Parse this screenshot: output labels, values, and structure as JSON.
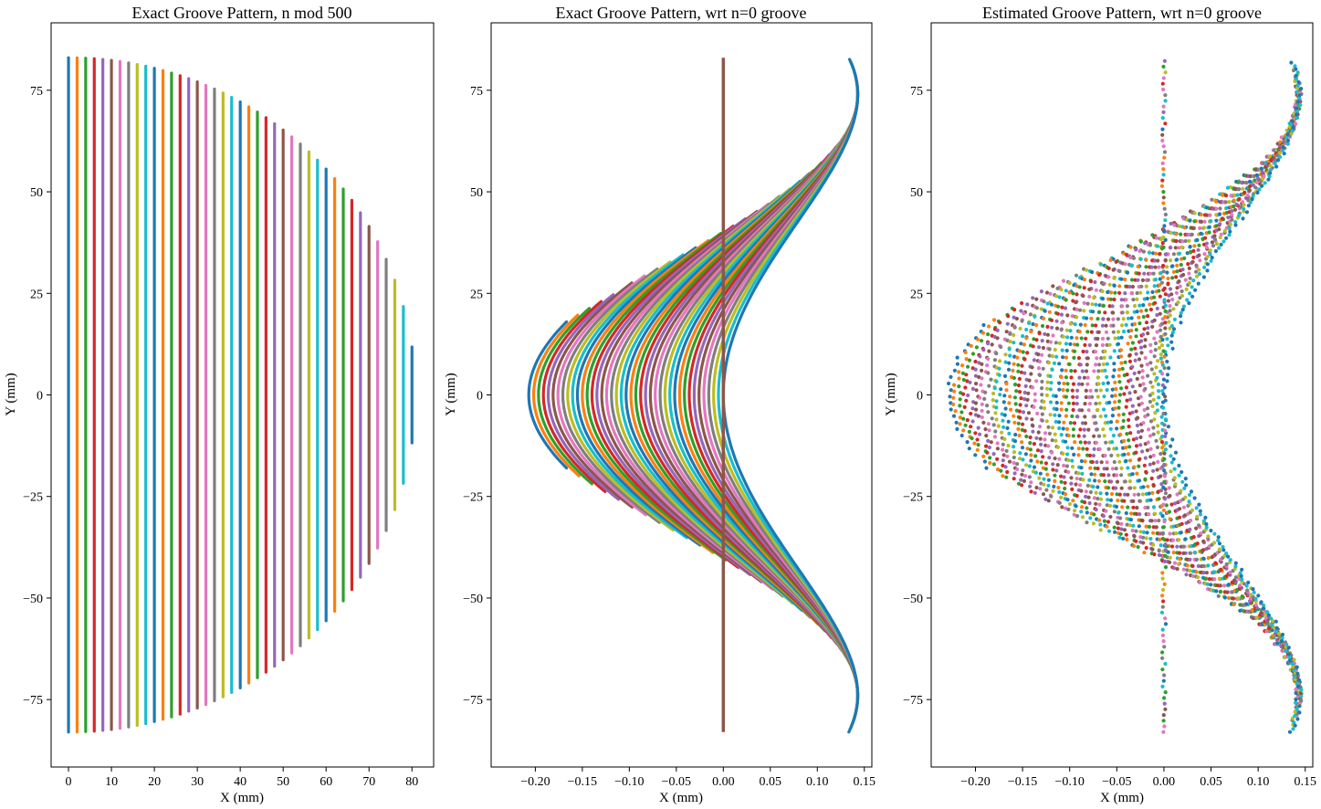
{
  "figure": {
    "palette": [
      "#1f77b4",
      "#ff7f0e",
      "#2ca02c",
      "#d62728",
      "#9467bd",
      "#8c564b",
      "#e377c2",
      "#7f7f7f",
      "#bcbd22",
      "#17becf"
    ]
  },
  "chart_data": [
    {
      "type": "line",
      "title": "Exact Groove Pattern, n mod 500",
      "xlabel": "X (mm)",
      "ylabel": "Y (mm)",
      "xlim": [
        -4.05,
        85.05
      ],
      "ylim": [
        -91.6,
        91.6
      ],
      "xticks": [
        0,
        10,
        20,
        30,
        40,
        50,
        60,
        70,
        80
      ],
      "xticklabels": [
        "0",
        "10",
        "20",
        "30",
        "40",
        "50",
        "60",
        "70",
        "80"
      ],
      "yticks": [
        75,
        50,
        25,
        0,
        -25,
        -50,
        -75
      ],
      "yticklabels": [
        "75",
        "50",
        "25",
        "0",
        "−25",
        "−50",
        "−75"
      ],
      "grid": false,
      "description_of_series": "vertical groove segments at x = 0, 2, ..., 81, each spanning y = ±sqrt(83^2 - 1.05*x^2)",
      "groove_spacing_mm": 2.0,
      "max_x": 81,
      "half_height_at_x0": 83,
      "half_height_at_xmax": 18
    },
    {
      "type": "line",
      "title": "Exact Groove Pattern, wrt n=0 groove",
      "xlabel": "X (mm)",
      "ylabel": "Y (mm)",
      "xlim": [
        -0.247,
        0.158
      ],
      "ylim": [
        -91.6,
        91.6
      ],
      "xticks": [
        -0.2,
        -0.15,
        -0.1,
        -0.05,
        0.0,
        0.05,
        0.1,
        0.15
      ],
      "xticklabels": [
        "−0.20",
        "−0.15",
        "−0.10",
        "−0.05",
        "0.00",
        "0.05",
        "0.10",
        "0.15"
      ],
      "yticks": [
        75,
        50,
        25,
        0,
        -25,
        -50,
        -75
      ],
      "yticklabels": [
        "75",
        "50",
        "25",
        "0",
        "−25",
        "−50",
        "−75"
      ],
      "grid": false,
      "vertex_x_range": [
        0.0,
        -0.207
      ],
      "tip_x": 0.143,
      "tip_y": 74
    },
    {
      "type": "scatter",
      "title": "Estimated Groove Pattern, wrt n=0 groove",
      "xlabel": "X (mm)",
      "ylabel": "Y (mm)",
      "xlim": [
        -0.247,
        0.158
      ],
      "ylim": [
        -91.6,
        91.6
      ],
      "xticks": [
        -0.2,
        -0.15,
        -0.1,
        -0.05,
        0.0,
        0.05,
        0.1,
        0.15
      ],
      "xticklabels": [
        "−0.20",
        "−0.15",
        "−0.10",
        "−0.05",
        "0.00",
        "0.05",
        "0.10",
        "0.15"
      ],
      "yticks": [
        75,
        50,
        25,
        0,
        -25,
        -50,
        -75
      ],
      "yticklabels": [
        "75",
        "50",
        "25",
        "0",
        "−25",
        "−50",
        "−75"
      ],
      "grid": false,
      "vertex_x_range": [
        0.0,
        -0.228
      ],
      "tip_x": 0.143,
      "tip_y": 74
    }
  ]
}
